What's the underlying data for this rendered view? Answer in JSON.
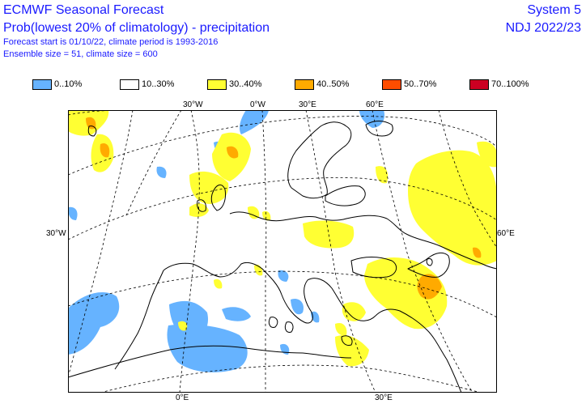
{
  "header": {
    "title": "ECMWF Seasonal Forecast",
    "subtitle": "Prob(lowest 20% of climatology) - precipitation",
    "line3": "Forecast start is 01/10/22, climate period is 1993-2016",
    "line4": "Ensemble size = 51, climate size = 600",
    "system": "System 5",
    "period": "NDJ 2022/23"
  },
  "legend": [
    {
      "label": "0..10%",
      "color": "#66b3ff"
    },
    {
      "label": "10..30%",
      "color": "#ffffff"
    },
    {
      "label": "30..40%",
      "color": "#ffff33"
    },
    {
      "label": "40..50%",
      "color": "#ffaa00"
    },
    {
      "label": "50..70%",
      "color": "#ff4d00"
    },
    {
      "label": "70..100%",
      "color": "#cc0022"
    }
  ],
  "map": {
    "top_lon_labels": [
      "30°W",
      "0°W",
      "30°E",
      "60°E"
    ],
    "bottom_lon_labels": [
      "0°E",
      "30°E"
    ],
    "left_lat_label": "30°W",
    "right_lat_label": "60°E"
  }
}
